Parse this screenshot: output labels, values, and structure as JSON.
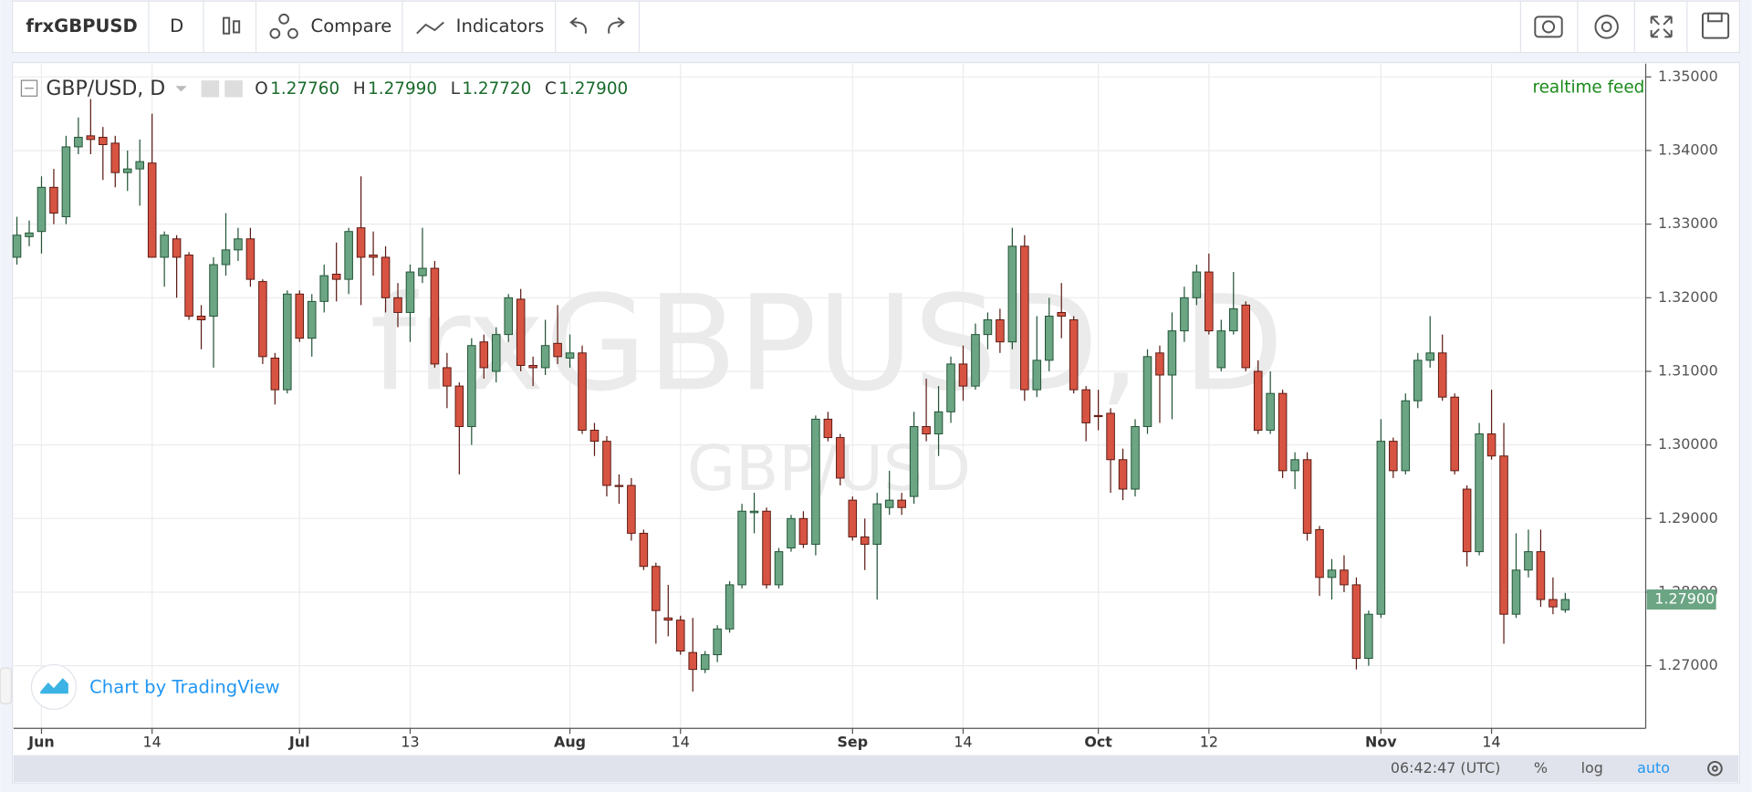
{
  "toolbar": {
    "symbol": "frxGBPUSD",
    "interval": "D",
    "compare": "Compare",
    "indicators": "Indicators"
  },
  "chart_data": {
    "type": "candlestick",
    "title": "GBP/USD, D",
    "watermark": "frxGBPUSD, D",
    "watermark_subtitle": "GBP/USD",
    "ohlc_legend": [
      {
        "label": "O",
        "value": "1.27760"
      },
      {
        "label": "H",
        "value": "1.27990"
      },
      {
        "label": "L",
        "value": "1.27720"
      },
      {
        "label": "C",
        "value": "1.27900"
      }
    ],
    "status": "realtime feed",
    "attribution": "Chart by TradingView",
    "last_price_label": "1.27900",
    "categories": [
      null,
      null,
      "Jun",
      null,
      null,
      null,
      null,
      null,
      null,
      null,
      null,
      "14",
      null,
      null,
      null,
      null,
      null,
      null,
      null,
      null,
      null,
      null,
      null,
      "Jul",
      null,
      null,
      null,
      null,
      null,
      null,
      null,
      null,
      "13",
      null,
      null,
      null,
      null,
      null,
      null,
      null,
      null,
      null,
      null,
      null,
      null,
      "Aug",
      null,
      null,
      null,
      null,
      null,
      null,
      null,
      null,
      "14",
      null,
      null,
      null,
      null,
      null,
      null,
      null,
      null,
      null,
      null,
      null,
      null,
      null,
      "Sep",
      null,
      null,
      null,
      null,
      null,
      null,
      null,
      null,
      "14",
      null,
      null,
      null,
      null,
      null,
      null,
      null,
      null,
      null,
      null,
      "Oct",
      null,
      null,
      null,
      null,
      null,
      null,
      null,
      null,
      "12",
      null,
      null,
      null,
      null,
      null,
      null,
      null,
      null,
      null,
      null,
      null,
      null,
      null,
      "Nov",
      null,
      null,
      null,
      null,
      null,
      null,
      null,
      null,
      "14",
      null,
      null,
      null,
      null,
      null,
      null
    ],
    "open": [
      1.3255,
      1.3283,
      1.329,
      1.335,
      1.331,
      1.3405,
      1.342,
      1.3418,
      1.341,
      1.337,
      1.3375,
      1.3383,
      1.3255,
      1.328,
      1.3258,
      1.3175,
      1.3175,
      1.3245,
      1.3265,
      1.328,
      1.3222,
      1.3118,
      1.3075,
      1.3205,
      1.3145,
      1.3195,
      1.3232,
      1.3225,
      1.3295,
      1.3258,
      1.3255,
      1.32,
      1.318,
      1.323,
      1.324,
      1.3105,
      1.308,
      1.3025,
      1.314,
      1.31,
      1.315,
      1.3198,
      1.3108,
      1.3105,
      1.3138,
      1.3118,
      1.3125,
      1.302,
      1.3005,
      1.2945,
      1.2945,
      1.288,
      1.2835,
      1.2765,
      1.2762,
      1.2718,
      1.2695,
      1.2715,
      1.275,
      1.281,
      1.2908,
      1.291,
      1.281,
      1.286,
      1.29,
      1.2865,
      1.3035,
      1.301,
      1.2925,
      1.2875,
      1.2865,
      1.2915,
      1.2925,
      1.293,
      1.3025,
      1.3015,
      1.3045,
      1.311,
      1.308,
      1.315,
      1.317,
      1.314,
      1.327,
      1.3075,
      1.3115,
      1.318,
      1.317,
      1.3075,
      1.304,
      1.3043,
      1.298,
      1.294,
      1.3025,
      1.3125,
      1.3095,
      1.3155,
      1.32,
      1.3235,
      1.3105,
      1.3155,
      1.319,
      1.31,
      1.302,
      1.307,
      1.2965,
      1.298,
      1.2885,
      1.282,
      1.283,
      1.281,
      1.271,
      1.277,
      1.3005,
      1.2965,
      1.306,
      1.3115,
      1.3125,
      1.3065,
      1.294,
      1.2855,
      1.3015,
      1.2985,
      1.277,
      1.283,
      1.2855,
      1.279,
      1.2776
    ],
    "high": [
      1.331,
      1.3305,
      1.3365,
      1.3375,
      1.342,
      1.3445,
      1.347,
      1.3432,
      1.342,
      1.34,
      1.3415,
      1.345,
      1.329,
      1.3285,
      1.3262,
      1.319,
      1.3255,
      1.3315,
      1.3295,
      1.3295,
      1.3225,
      1.3125,
      1.321,
      1.321,
      1.3205,
      1.3245,
      1.3275,
      1.3295,
      1.3365,
      1.329,
      1.327,
      1.322,
      1.3245,
      1.3295,
      1.325,
      1.3125,
      1.3085,
      1.3145,
      1.315,
      1.316,
      1.3205,
      1.3212,
      1.312,
      1.317,
      1.319,
      1.315,
      1.3135,
      1.303,
      1.3012,
      1.296,
      1.2955,
      1.2885,
      1.284,
      1.281,
      1.2768,
      1.2765,
      1.272,
      1.2755,
      1.2815,
      1.292,
      1.2935,
      1.2915,
      1.286,
      1.2905,
      1.291,
      1.304,
      1.3045,
      1.3015,
      1.293,
      1.29,
      1.2935,
      1.2965,
      1.2935,
      1.3045,
      1.309,
      1.308,
      1.312,
      1.3135,
      1.3165,
      1.318,
      1.3185,
      1.3295,
      1.3285,
      1.3175,
      1.32,
      1.322,
      1.3175,
      1.308,
      1.3075,
      1.305,
      1.2995,
      1.3035,
      1.313,
      1.3135,
      1.318,
      1.3215,
      1.3245,
      1.326,
      1.317,
      1.3235,
      1.3195,
      1.3115,
      1.31,
      1.3075,
      1.299,
      1.299,
      1.289,
      1.2845,
      1.285,
      1.282,
      1.2775,
      1.3035,
      1.301,
      1.307,
      1.3125,
      1.3175,
      1.315,
      1.307,
      1.2945,
      1.303,
      1.3075,
      1.303,
      1.288,
      1.2885,
      1.2885,
      1.282,
      1.2799
    ],
    "low": [
      1.3245,
      1.327,
      1.326,
      1.33,
      1.33,
      1.3395,
      1.3395,
      1.336,
      1.335,
      1.3345,
      1.3325,
      1.3255,
      1.3215,
      1.32,
      1.317,
      1.313,
      1.3105,
      1.323,
      1.325,
      1.3215,
      1.311,
      1.3055,
      1.307,
      1.314,
      1.312,
      1.318,
      1.3195,
      1.3205,
      1.319,
      1.323,
      1.318,
      1.316,
      1.314,
      1.322,
      1.3105,
      1.305,
      1.296,
      1.3,
      1.309,
      1.3085,
      1.314,
      1.31,
      1.308,
      1.3095,
      1.311,
      1.3105,
      1.3015,
      1.2985,
      1.293,
      1.292,
      1.287,
      1.283,
      1.273,
      1.274,
      1.2715,
      1.2665,
      1.269,
      1.2705,
      1.2745,
      1.2805,
      1.288,
      1.2805,
      1.2805,
      1.2855,
      1.286,
      1.285,
      1.3005,
      1.2945,
      1.287,
      1.283,
      1.279,
      1.2905,
      1.2905,
      1.292,
      1.3005,
      1.2985,
      1.303,
      1.306,
      1.3075,
      1.313,
      1.3125,
      1.313,
      1.306,
      1.3065,
      1.31,
      1.3145,
      1.307,
      1.3005,
      1.302,
      1.2935,
      1.2925,
      1.293,
      1.3015,
      1.303,
      1.3035,
      1.314,
      1.319,
      1.315,
      1.31,
      1.315,
      1.31,
      1.3015,
      1.3015,
      1.2955,
      1.294,
      1.287,
      1.2795,
      1.279,
      1.28,
      1.2695,
      1.27,
      1.2765,
      1.2955,
      1.296,
      1.305,
      1.3105,
      1.306,
      1.296,
      1.2835,
      1.285,
      1.298,
      1.273,
      1.2765,
      1.282,
      1.278,
      1.277,
      1.2772
    ],
    "close": [
      1.3285,
      1.3288,
      1.335,
      1.3315,
      1.3405,
      1.3418,
      1.3415,
      1.3408,
      1.337,
      1.3375,
      1.3385,
      1.3255,
      1.3285,
      1.3255,
      1.3175,
      1.317,
      1.3245,
      1.3265,
      1.328,
      1.3225,
      1.312,
      1.3075,
      1.3205,
      1.3145,
      1.3195,
      1.323,
      1.3225,
      1.329,
      1.3255,
      1.3255,
      1.32,
      1.318,
      1.3235,
      1.324,
      1.311,
      1.308,
      1.3025,
      1.3135,
      1.3105,
      1.315,
      1.32,
      1.3108,
      1.3105,
      1.3135,
      1.312,
      1.3125,
      1.302,
      1.3005,
      1.2945,
      1.2945,
      1.288,
      1.2835,
      1.2775,
      1.2762,
      1.272,
      1.2695,
      1.2715,
      1.275,
      1.281,
      1.291,
      1.291,
      1.281,
      1.2855,
      1.29,
      1.2865,
      1.3035,
      1.301,
      1.2955,
      1.2875,
      1.2865,
      1.292,
      1.2925,
      1.2915,
      1.3025,
      1.3015,
      1.3045,
      1.311,
      1.308,
      1.315,
      1.317,
      1.314,
      1.327,
      1.3075,
      1.3115,
      1.3175,
      1.3175,
      1.3075,
      1.303,
      1.304,
      1.298,
      1.294,
      1.3025,
      1.312,
      1.3095,
      1.3155,
      1.32,
      1.3235,
      1.3155,
      1.3155,
      1.3185,
      1.3105,
      1.302,
      1.307,
      1.2965,
      1.298,
      1.288,
      1.282,
      1.283,
      1.281,
      1.271,
      1.277,
      1.3005,
      1.2965,
      1.306,
      1.3115,
      1.3125,
      1.3065,
      1.2965,
      1.2855,
      1.3015,
      1.2985,
      1.277,
      1.283,
      1.2855,
      1.279,
      1.278,
      1.279
    ],
    "up_color": "#6ba583",
    "down_color": "#d75442",
    "ylim": [
      1.2615,
      1.3518
    ],
    "yticks": [
      {
        "value": 1.27,
        "label": "1.27000"
      },
      {
        "value": 1.28,
        "label": "1.28000"
      },
      {
        "value": 1.29,
        "label": "1.29000"
      },
      {
        "value": 1.3,
        "label": "1.30000"
      },
      {
        "value": 1.31,
        "label": "1.31000"
      },
      {
        "value": 1.32,
        "label": "1.32000"
      },
      {
        "value": 1.33,
        "label": "1.33000"
      },
      {
        "value": 1.34,
        "label": "1.34000"
      },
      {
        "value": 1.35,
        "label": "1.35000"
      }
    ],
    "grid": true
  },
  "footer": {
    "time": "06:42:47 (UTC)",
    "percent": "%",
    "log": "log",
    "auto": "auto"
  }
}
